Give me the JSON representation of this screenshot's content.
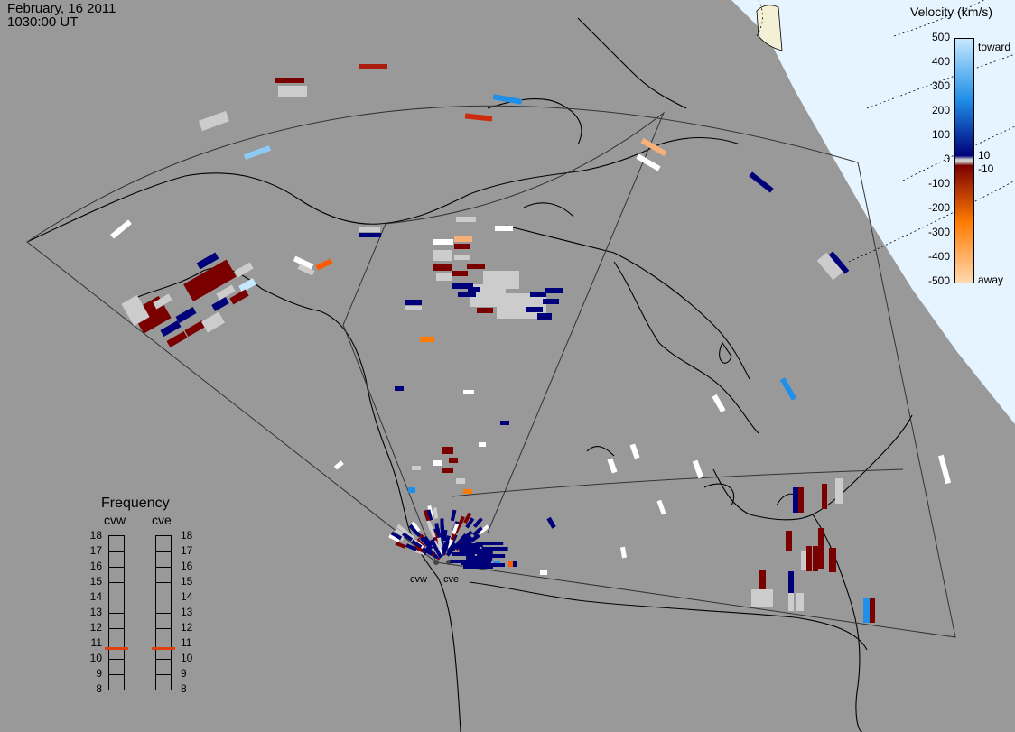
{
  "header": {
    "date": "February, 16 2011",
    "time": "1030:00 UT"
  },
  "colorbar": {
    "title": "Velocity (km/s)",
    "ticks": [
      "500",
      "400",
      "300",
      "200",
      "100",
      "0",
      "-100",
      "-200",
      "-300",
      "-400",
      "-500"
    ],
    "inner_ticks": [
      "10",
      "-10"
    ],
    "toward_label": "toward",
    "away_label": "away",
    "colors": {
      "toward_light": "#c6e8ff",
      "toward_mid": "#1f8fe8",
      "toward_dark": "#00007a",
      "away_dark": "#7a0000",
      "away_mid": "#ff7a00",
      "away_light": "#ffd9b0",
      "near_zero": "#cccccc"
    }
  },
  "frequency_panel": {
    "title": "Frequency",
    "radars": [
      "cvw",
      "cve"
    ],
    "ticks": [
      "18",
      "17",
      "16",
      "15",
      "14",
      "13",
      "12",
      "11",
      "10",
      "9",
      "8"
    ],
    "cvw_value_mhz": 10.7,
    "cve_value_mhz": 10.7,
    "indicator_color": "#e04010"
  },
  "radar_sites": [
    "cvw",
    "cve"
  ],
  "colors": {
    "background": "#999999",
    "polar_day": "#e6f4ff",
    "scatter_white": "#ffffff",
    "ground_scatter": "#cccccc"
  }
}
